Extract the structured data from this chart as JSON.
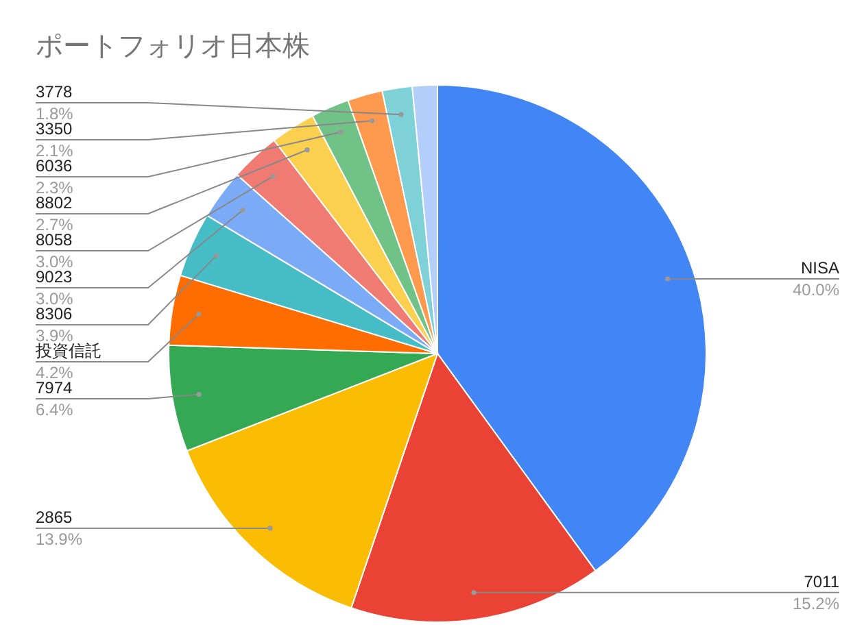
{
  "chart_data": {
    "type": "pie",
    "title": "ポートフォリオ日本株",
    "categories": [
      "NISA",
      "7011",
      "2865",
      "7974",
      "投資信託",
      "8306",
      "9023",
      "8058",
      "8802",
      "6036",
      "3350",
      "3778",
      null
    ],
    "values": [
      40.0,
      15.2,
      13.9,
      6.4,
      4.2,
      3.9,
      3.0,
      3.0,
      2.7,
      2.3,
      2.1,
      1.8,
      1.5
    ],
    "colors": [
      "#4285f4",
      "#ea4335",
      "#fbbc04",
      "#34a853",
      "#ff6d01",
      "#46bdc6",
      "#7baaf7",
      "#f07b72",
      "#fcd04f",
      "#71c287",
      "#ff994d",
      "#7ed1d7",
      "#b3cefb"
    ],
    "value_labels": [
      "40.0%",
      "15.2%",
      "13.9%",
      "6.4%",
      "4.2%",
      "3.9%",
      "3.0%",
      "3.0%",
      "2.7%",
      "2.3%",
      "2.1%",
      "1.8%",
      null
    ]
  }
}
